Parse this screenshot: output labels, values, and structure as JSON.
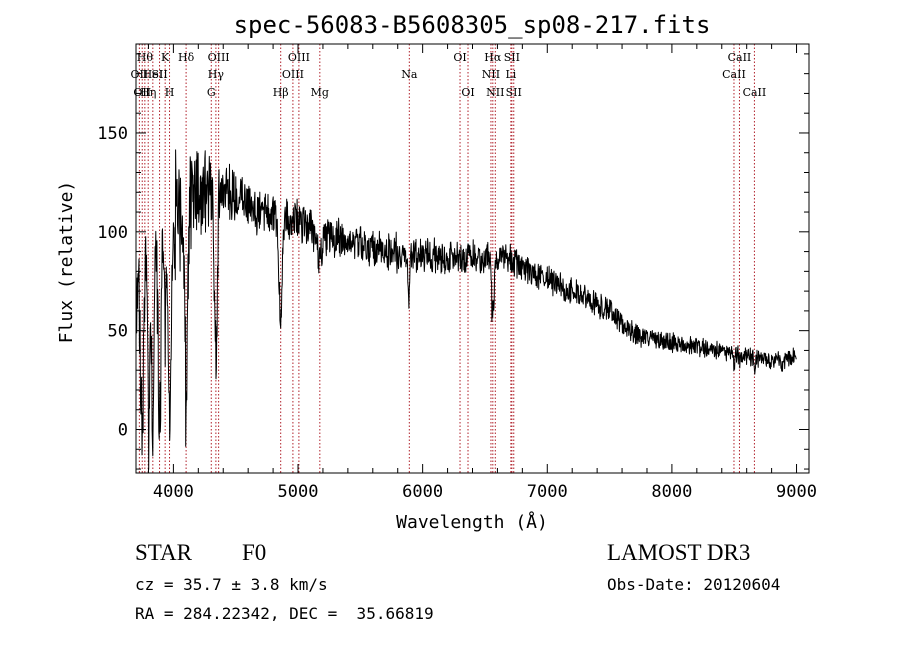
{
  "chart_data": {
    "type": "line",
    "title": "spec-56083-B5608305_sp08-217.fits",
    "xlabel": "Wavelength (Å)",
    "ylabel": "Flux (relative)",
    "xlim": [
      3700,
      9100
    ],
    "ylim": [
      -22,
      195
    ],
    "x_ticks": [
      4000,
      5000,
      6000,
      7000,
      8000,
      9000
    ],
    "y_ticks": [
      0,
      50,
      100,
      150
    ],
    "x_minor_step": 200,
    "y_minor_step": 10,
    "series": [
      {
        "name": "flux",
        "continuum_anchors": [
          [
            3700,
            60
          ],
          [
            3760,
            90
          ],
          [
            3900,
            100
          ],
          [
            4100,
            115
          ],
          [
            4300,
            125
          ],
          [
            4500,
            117
          ],
          [
            4700,
            110
          ],
          [
            5000,
            105
          ],
          [
            5300,
            97
          ],
          [
            5600,
            92
          ],
          [
            5900,
            88
          ],
          [
            6200,
            87
          ],
          [
            6500,
            87
          ],
          [
            6700,
            86
          ],
          [
            6900,
            79
          ],
          [
            7100,
            73
          ],
          [
            7300,
            67
          ],
          [
            7500,
            60
          ],
          [
            7600,
            53
          ],
          [
            7700,
            48
          ],
          [
            8000,
            44
          ],
          [
            8300,
            41
          ],
          [
            8600,
            37
          ],
          [
            8900,
            34
          ],
          [
            9000,
            38
          ]
        ],
        "absorption_features": [
          [
            3750,
            12,
            85
          ],
          [
            3800,
            8,
            90
          ],
          [
            3835,
            10,
            95
          ],
          [
            3889,
            12,
            95
          ],
          [
            3934,
            5,
            65
          ],
          [
            3970,
            12,
            90
          ],
          [
            4102,
            12,
            100
          ],
          [
            4340,
            12,
            85
          ],
          [
            4861,
            12,
            55
          ],
          [
            5175,
            20,
            12
          ],
          [
            5890,
            8,
            20
          ],
          [
            6563,
            10,
            30
          ],
          [
            8500,
            5,
            5
          ],
          [
            8545,
            5,
            5
          ],
          [
            8665,
            5,
            5
          ]
        ],
        "noise_levels": [
          [
            3700,
            20
          ],
          [
            4000,
            28
          ],
          [
            4300,
            18
          ],
          [
            4500,
            12
          ],
          [
            5000,
            9
          ],
          [
            6000,
            8
          ],
          [
            7000,
            6
          ],
          [
            7600,
            5
          ],
          [
            8000,
            4
          ],
          [
            9000,
            4
          ]
        ],
        "sample_step": 3
      }
    ],
    "line_markers": [
      {
        "wavelength": 3727,
        "label": "OII",
        "row": 1
      },
      {
        "wavelength": 3750,
        "label": "OII",
        "row": 2
      },
      {
        "wavelength": 3771,
        "label": "Hθ",
        "row": 0
      },
      {
        "wavelength": 3798,
        "label": "Hη",
        "row": 2
      },
      {
        "wavelength": 3835,
        "label": "HeI",
        "row": 1
      },
      {
        "wavelength": 3889,
        "label": "SII",
        "row": 1
      },
      {
        "wavelength": 3934,
        "label": "K",
        "row": 0
      },
      {
        "wavelength": 3969,
        "label": "H",
        "row": 2
      },
      {
        "wavelength": 4102,
        "label": "Hδ",
        "row": 0
      },
      {
        "wavelength": 4304,
        "label": "G",
        "row": 2
      },
      {
        "wavelength": 4341,
        "label": "Hγ",
        "row": 1
      },
      {
        "wavelength": 4363,
        "label": "OIII",
        "row": 0
      },
      {
        "wavelength": 4861,
        "label": "Hβ",
        "row": 2
      },
      {
        "wavelength": 4959,
        "label": "OIII",
        "row": 1
      },
      {
        "wavelength": 5007,
        "label": "OIII",
        "row": 0
      },
      {
        "wavelength": 5175,
        "label": "Mg",
        "row": 2
      },
      {
        "wavelength": 5893,
        "label": "Na",
        "row": 1
      },
      {
        "wavelength": 6300,
        "label": "OI",
        "row": 0
      },
      {
        "wavelength": 6364,
        "label": "OI",
        "row": 2
      },
      {
        "wavelength": 6548,
        "label": "NII",
        "row": 1
      },
      {
        "wavelength": 6563,
        "label": "Hα",
        "row": 0
      },
      {
        "wavelength": 6583,
        "label": "NII",
        "row": 2
      },
      {
        "wavelength": 6708,
        "label": "Li",
        "row": 1
      },
      {
        "wavelength": 6716,
        "label": "SII",
        "row": 0
      },
      {
        "wavelength": 6731,
        "label": "SII",
        "row": 2
      },
      {
        "wavelength": 8498,
        "label": "CaII",
        "row": 1
      },
      {
        "wavelength": 8542,
        "label": "CaII",
        "row": 0
      },
      {
        "wavelength": 8662,
        "label": "CaII",
        "row": 2
      }
    ],
    "marker_color": "#b0202a",
    "line_color": "#000000"
  },
  "info": {
    "object_class": "STAR",
    "subclass": "F0",
    "survey": "LAMOST DR3",
    "redshift": "cz = 35.7 ± 3.8 km/s",
    "obs_date": "Obs-Date: 20120604",
    "coordinates": "RA = 284.22342, DEC =  35.66819"
  }
}
